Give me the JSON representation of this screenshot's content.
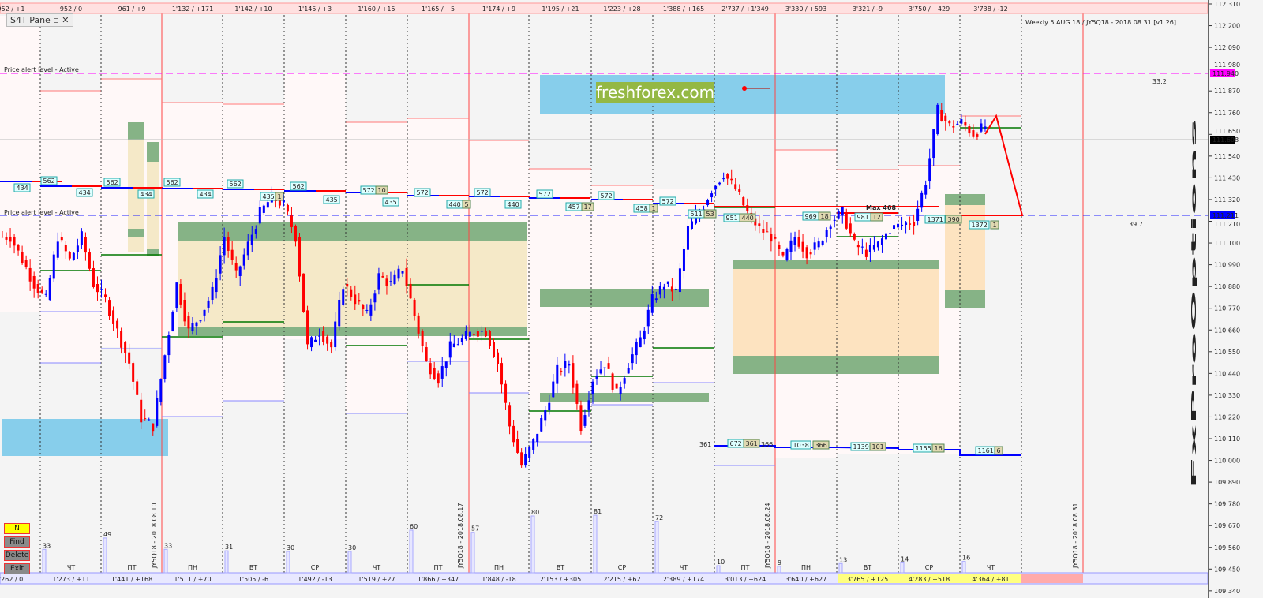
{
  "window": {
    "pane_title": "S4T Pane",
    "header_info": "Weekly 5 AUG 18 / JY5Q18 - 2018.08.31 [v1.26]",
    "watermark": "FxProOptions",
    "broker_logo": "freshforex.com"
  },
  "buttons": {
    "n": "N",
    "find": "Find",
    "delete": "Delete",
    "exit": "Exit"
  },
  "alerts": {
    "upper_label": "Price alert level - Active",
    "lower_label": "Price alert level - Active",
    "upper_price": "111.940",
    "lower_price": "111.211",
    "upper_value": "33.2",
    "lower_value": "39.7"
  },
  "current_price": "111.608",
  "price_axis": [
    "112.310",
    "112.200",
    "112.090",
    "111.980",
    "111.870",
    "111.760",
    "111.650",
    "111.540",
    "111.430",
    "111.320",
    "111.210",
    "111.100",
    "110.990",
    "110.880",
    "110.770",
    "110.660",
    "110.550",
    "110.440",
    "110.330",
    "110.220",
    "110.110",
    "110.000",
    "109.890",
    "109.780",
    "109.670",
    "109.560",
    "109.450",
    "109.340"
  ],
  "top_bar": [
    "952 / +1",
    "952 / 0",
    "961 / +9",
    "1'132 / +171",
    "1'142 / +10",
    "1'145 / +3",
    "1'160 / +15",
    "1'165 / +5",
    "1'174 / +9",
    "1'195 / +21",
    "1'223 / +28",
    "1'388 / +165",
    "2'737 / +1'349",
    "3'330 / +593",
    "3'321 / -9",
    "3'750 / +429",
    "3'738 / -12"
  ],
  "bottom_bar": [
    "'262 / 0",
    "1'273 / +11",
    "1'441 / +168",
    "1'511 / +70",
    "1'505 / -6",
    "1'492 / -13",
    "1'519 / +27",
    "1'866 / +347",
    "1'848 / -18",
    "2'153 / +305",
    "2'215 / +62",
    "2'389 / +174",
    "3'013 / +624",
    "3'640 / +627",
    "3'765 / +125",
    "4'283 / +518",
    "4'364 / +81"
  ],
  "days": [
    "ЧТ",
    "ПТ",
    "ПН",
    "ВТ",
    "СР",
    "ЧТ",
    "ПТ",
    "ПН",
    "ВТ",
    "СР",
    "ЧТ",
    "ПТ",
    "ПН",
    "ВТ",
    "СР",
    "ЧТ"
  ],
  "week_labels": [
    "JY5Q18 - 2018.08.10",
    "JY5Q18 - 2018.08.17",
    "JY5Q18 - 2018.08.24",
    "JY5Q18 - 2018.08.31"
  ],
  "volumes": [
    "33",
    "49",
    "33",
    "31",
    "30",
    "30",
    "60",
    "57",
    "80",
    "81",
    "72",
    "10",
    "9",
    "13",
    "14",
    "16"
  ],
  "level_labels": [
    "434",
    "562",
    "434",
    "562",
    "434",
    "562",
    "434",
    "562",
    "435",
    "1",
    "562",
    "435",
    "572",
    "10",
    "435",
    "572",
    "440",
    "5",
    "572",
    "440",
    "572",
    "457",
    "17",
    "572",
    "458",
    "1",
    "572",
    "511",
    "53",
    "951",
    "440",
    "969",
    "18",
    "981",
    "12",
    "1371",
    "390",
    "1372",
    "1"
  ],
  "lower_level_labels": [
    "672",
    "361",
    "1038",
    "366",
    "1139",
    "101",
    "1155",
    "16",
    "1161",
    "6"
  ],
  "lower_level_notes": [
    "361",
    "366"
  ],
  "max_label": "Max 468",
  "colors": {
    "up": "#0000ff",
    "down": "#ff0000",
    "alert_upper": "#ff00ff",
    "alert_lower": "#0000ff",
    "zone_blue": "#87ceeb",
    "zone_green": "#86b386",
    "zone_tan": "#f5e9c8",
    "zone_orange": "#fde3c0"
  },
  "chart_data": {
    "type": "candlestick",
    "symbol": "JY5Q18",
    "closes": [
      111.134,
      111.134,
      111.015,
      110.895,
      110.815,
      111.134,
      111.015,
      111.134,
      110.895,
      110.815,
      110.656,
      110.496,
      110.217,
      110.178,
      110.536,
      110.895,
      110.656,
      110.736,
      110.855,
      111.134,
      110.935,
      111.094,
      111.254,
      111.334,
      111.294,
      111.134,
      110.576,
      110.656,
      110.576,
      110.895,
      110.815,
      110.736,
      110.935,
      110.895,
      110.975,
      110.736,
      110.496,
      110.417,
      110.576,
      110.616,
      110.656,
      110.656,
      110.496,
      110.178,
      109.978,
      110.098,
      110.257,
      110.457,
      110.496,
      110.178,
      110.417,
      110.496,
      110.337,
      110.496,
      110.616,
      110.815,
      110.895,
      110.855,
      111.174,
      111.254,
      111.373,
      111.453,
      111.373,
      111.254,
      111.174,
      111.134,
      111.015,
      111.134,
      111.055,
      111.094,
      111.214,
      111.254,
      111.094,
      111.055,
      111.094,
      111.174,
      111.194,
      111.214,
      111.413,
      111.772,
      111.692,
      111.712,
      111.652,
      111.692
    ]
  }
}
